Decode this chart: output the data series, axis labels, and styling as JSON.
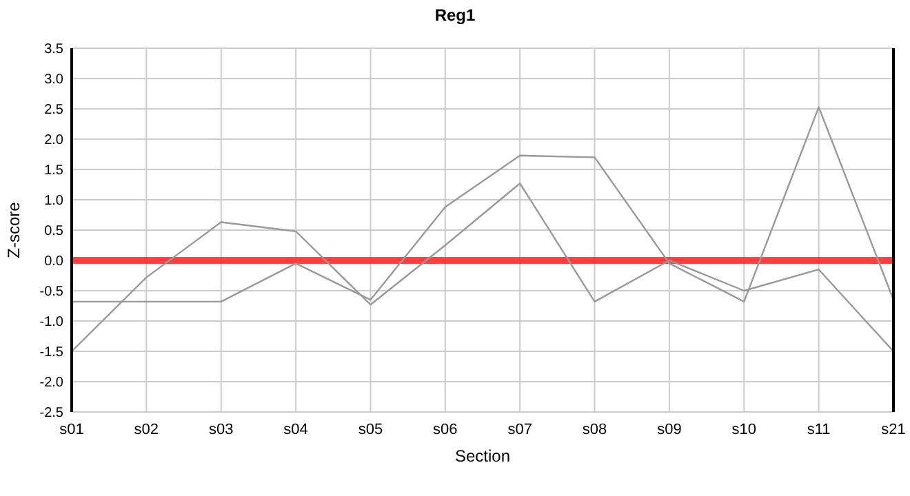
{
  "chart_data": {
    "type": "line",
    "title": "Reg1",
    "xlabel": "Section",
    "ylabel": "Z-score",
    "categories": [
      "s01",
      "s02",
      "s03",
      "s04",
      "s05",
      "s06",
      "s07",
      "s08",
      "s09",
      "s10",
      "s11",
      "s21"
    ],
    "series": [
      {
        "color": "#999999",
        "values": [
          -1.5,
          -0.28,
          0.63,
          0.48,
          -0.73,
          0.25,
          1.27,
          -0.68,
          0.0,
          -0.5,
          -0.15,
          -1.5
        ]
      },
      {
        "color": "#999999",
        "values": [
          -0.68,
          -0.68,
          -0.68,
          -0.05,
          -0.65,
          0.88,
          1.73,
          1.7,
          -0.05,
          -0.68,
          2.53,
          -0.65
        ]
      }
    ],
    "ylim": [
      -2.5,
      3.5
    ],
    "yticks": [
      -2.5,
      {
        "value": -2,
        "label": "-2.0"
      },
      -1.5,
      {
        "value": -1,
        "label": "-1.0"
      },
      -0.5,
      {
        "value": 0,
        "label": "0.0"
      },
      0.5,
      {
        "value": 1,
        "label": "1.0"
      },
      1.5,
      {
        "value": 2,
        "label": "2.0"
      },
      2.5,
      {
        "value": 3,
        "label": "3.0"
      },
      3.5
    ],
    "ref_lines": [
      {
        "axis": "y",
        "value": 0,
        "color": "#ff2020"
      }
    ],
    "grid": true,
    "marker": "none",
    "line_style": "solid"
  }
}
